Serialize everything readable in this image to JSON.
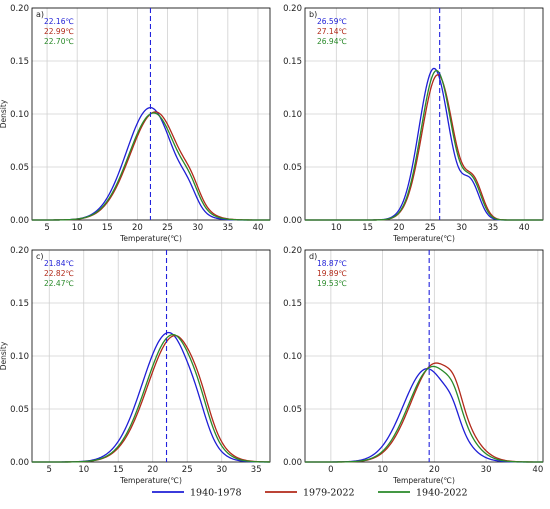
{
  "colors": {
    "1940-1978": "#1f1fd6",
    "1979-2022": "#b22a1a",
    "1940-2022": "#2a8a2a",
    "vline": "#2222dd",
    "grid": "#d0d0d0"
  },
  "legend": {
    "items": [
      {
        "label": "1940-1978",
        "color_key": "1940-1978"
      },
      {
        "label": "1979-2022",
        "color_key": "1979-2022"
      },
      {
        "label": "1940-2022",
        "color_key": "1940-2022"
      }
    ]
  },
  "chart_data": [
    {
      "type": "line",
      "panel": "a)",
      "xlabel": "Temperature(℃)",
      "ylabel": "Density",
      "xlim": [
        2.5,
        42
      ],
      "ylim": [
        0,
        0.2
      ],
      "xticks": [
        5,
        10,
        15,
        20,
        25,
        30,
        35,
        40
      ],
      "yticks": [
        0.0,
        0.05,
        0.1,
        0.15,
        0.2
      ],
      "ytick_labels": [
        "0.00",
        "0.05",
        "0.10",
        "0.15",
        "0.20"
      ],
      "grid": true,
      "vline": 22.16,
      "stats": [
        "22.16℃",
        "22.99℃",
        "22.70℃"
      ],
      "series": [
        {
          "name": "1940-1978",
          "color_key": "1940-1978",
          "mean": 22.16,
          "sd": 3.8,
          "peak": 0.106,
          "skew_k": 0.05,
          "shoulder_x": 28.5,
          "shoulder_h": 0.012
        },
        {
          "name": "1979-2022",
          "color_key": "1979-2022",
          "mean": 22.99,
          "sd": 4.0,
          "peak": 0.102,
          "skew_k": 0.05,
          "shoulder_x": 29.0,
          "shoulder_h": 0.012
        },
        {
          "name": "1940-2022",
          "color_key": "1940-2022",
          "mean": 22.7,
          "sd": 3.95,
          "peak": 0.101,
          "skew_k": 0.05,
          "shoulder_x": 28.8,
          "shoulder_h": 0.012
        }
      ]
    },
    {
      "type": "line",
      "panel": "b)",
      "xlabel": "Temperature(℃)",
      "ylabel": "",
      "xlim": [
        5,
        43
      ],
      "ylim": [
        0,
        0.2
      ],
      "xticks": [
        10,
        15,
        20,
        25,
        30,
        35,
        40
      ],
      "yticks": [
        0.0,
        0.05,
        0.1,
        0.15,
        0.2
      ],
      "ytick_labels": [
        "0.00",
        "0.05",
        "0.10",
        "0.15",
        "0.20"
      ],
      "grid": true,
      "vline": 26.5,
      "stats": [
        "26.59℃",
        "27.14℃",
        "26.94℃"
      ],
      "series": [
        {
          "name": "1940-1978",
          "color_key": "1940-1978",
          "mean": 25.6,
          "sd": 2.4,
          "peak": 0.143,
          "skew_k": 0.0,
          "shoulder_x": 31.5,
          "shoulder_h": 0.032
        },
        {
          "name": "1979-2022",
          "color_key": "1979-2022",
          "mean": 26.2,
          "sd": 2.5,
          "peak": 0.137,
          "skew_k": 0.0,
          "shoulder_x": 32.0,
          "shoulder_h": 0.032
        },
        {
          "name": "1940-2022",
          "color_key": "1940-2022",
          "mean": 26.0,
          "sd": 2.45,
          "peak": 0.141,
          "skew_k": 0.0,
          "shoulder_x": 31.8,
          "shoulder_h": 0.032
        }
      ]
    },
    {
      "type": "line",
      "panel": "c)",
      "xlabel": "Temperature(℃)",
      "ylabel": "Density",
      "xlim": [
        2.5,
        37
      ],
      "ylim": [
        0,
        0.2
      ],
      "xticks": [
        5,
        10,
        15,
        20,
        25,
        30,
        35
      ],
      "yticks": [
        0.0,
        0.05,
        0.1,
        0.15,
        0.2
      ],
      "ytick_labels": [
        "0.00",
        "0.05",
        "0.10",
        "0.15",
        "0.20"
      ],
      "grid": true,
      "vline": 22.0,
      "stats": [
        "21.84℃",
        "22.82℃",
        "22.47℃"
      ],
      "series": [
        {
          "name": "1940-1978",
          "color_key": "1940-1978",
          "mean": 22.3,
          "sd": 3.4,
          "peak": 0.122,
          "skew_k": 0.12,
          "shoulder_x": 26.5,
          "shoulder_h": 0.01
        },
        {
          "name": "1979-2022",
          "color_key": "1979-2022",
          "mean": 23.2,
          "sd": 3.5,
          "peak": 0.119,
          "skew_k": 0.12,
          "shoulder_x": 27.0,
          "shoulder_h": 0.01
        },
        {
          "name": "1940-2022",
          "color_key": "1940-2022",
          "mean": 22.9,
          "sd": 3.45,
          "peak": 0.12,
          "skew_k": 0.12,
          "shoulder_x": 26.8,
          "shoulder_h": 0.01
        }
      ]
    },
    {
      "type": "line",
      "panel": "d)",
      "xlabel": "Temperature(℃)",
      "ylabel": "",
      "xlim": [
        -5,
        41
      ],
      "ylim": [
        0,
        0.2
      ],
      "xticks": [
        0,
        10,
        20,
        30,
        40
      ],
      "yticks": [
        0.0,
        0.05,
        0.1,
        0.15,
        0.2
      ],
      "ytick_labels": [
        "0.00",
        "0.05",
        "0.10",
        "0.15",
        "0.20"
      ],
      "grid": true,
      "vline": 19.0,
      "stats": [
        "18.87℃",
        "19.89℃",
        "19.53℃"
      ],
      "series": [
        {
          "name": "1940-1978",
          "color_key": "1940-1978",
          "mean": 18.6,
          "sd": 4.6,
          "peak": 0.088,
          "skew_k": 0.0,
          "shoulder_x": 23.5,
          "shoulder_h": 0.01
        },
        {
          "name": "1979-2022",
          "color_key": "1979-2022",
          "mean": 20.2,
          "sd": 4.7,
          "peak": 0.093,
          "skew_k": 0.0,
          "shoulder_x": 24.0,
          "shoulder_h": 0.012
        },
        {
          "name": "1940-2022",
          "color_key": "1940-2022",
          "mean": 19.7,
          "sd": 4.65,
          "peak": 0.09,
          "skew_k": 0.0,
          "shoulder_x": 23.8,
          "shoulder_h": 0.011
        }
      ]
    }
  ]
}
